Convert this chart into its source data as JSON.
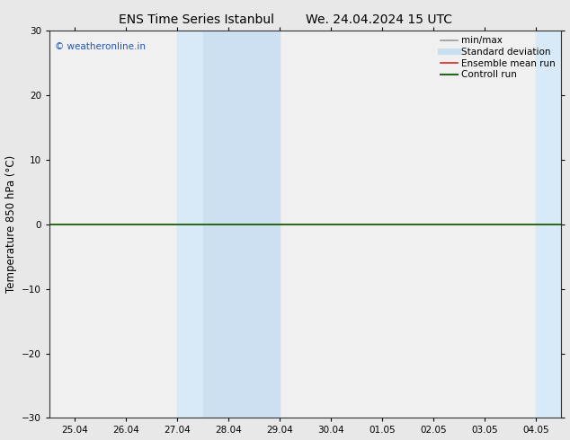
{
  "title1": "ENS Time Series Istanbul",
  "title2": "We. 24.04.2024 15 UTC",
  "ylabel": "Temperature 850 hPa (°C)",
  "xtick_labels": [
    "25.04",
    "26.04",
    "27.04",
    "28.04",
    "29.04",
    "30.04",
    "01.05",
    "02.05",
    "03.05",
    "04.05"
  ],
  "ylim": [
    -30,
    30
  ],
  "yticks": [
    -30,
    -20,
    -10,
    0,
    10,
    20,
    30
  ],
  "shaded_regions": [
    {
      "xstart": 2.0,
      "xend": 2.5,
      "color": "#daeaf7"
    },
    {
      "xstart": 2.5,
      "xend": 4.0,
      "color": "#daeaf7"
    },
    {
      "xstart": 9.0,
      "xend": 9.5,
      "color": "#daeaf7"
    },
    {
      "xstart": 9.5,
      "xend": 9.95,
      "color": "#daeaf7"
    }
  ],
  "shaded_groups": [
    {
      "xstart": 2.0,
      "xend": 2.5,
      "color": "#daeaf7"
    },
    {
      "xstart": 2.5,
      "xend": 4.0,
      "color": "#cde1f2"
    },
    {
      "xstart": 9.0,
      "xend": 9.5,
      "color": "#daeaf7"
    },
    {
      "xstart": 9.5,
      "xend": 9.95,
      "color": "#cde1f2"
    }
  ],
  "zero_line_color": "#1a5c00",
  "bg_color": "#e8e8e8",
  "plot_bg_color": "#f0f0f0",
  "watermark": "© weatheronline.in",
  "watermark_color": "#2255bb",
  "legend_entries": [
    {
      "label": "min/max",
      "color": "#999999",
      "lw": 1.2
    },
    {
      "label": "Standard deviation",
      "color": "#c8dff0",
      "lw": 5
    },
    {
      "label": "Ensemble mean run",
      "color": "#dd2222",
      "lw": 1.2
    },
    {
      "label": "Controll run",
      "color": "#226622",
      "lw": 1.5
    }
  ],
  "title_fontsize": 10,
  "tick_fontsize": 7.5,
  "ylabel_fontsize": 8.5,
  "legend_fontsize": 7.5
}
